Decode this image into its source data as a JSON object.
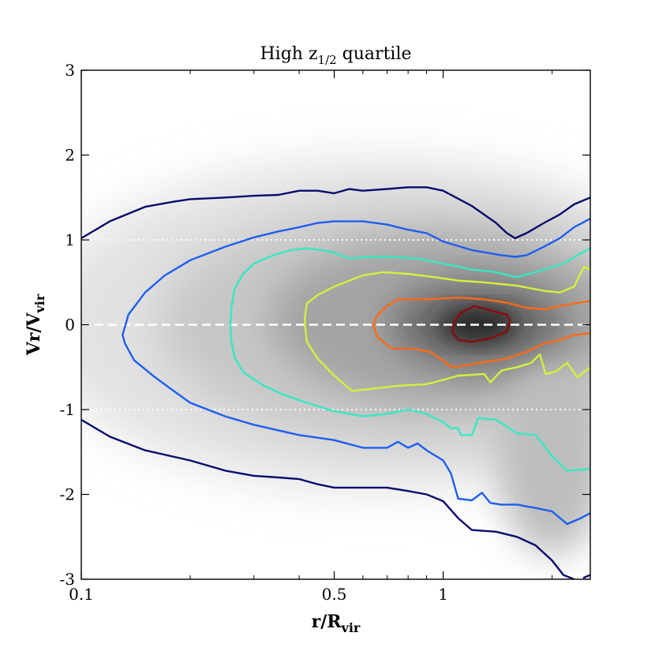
{
  "chart_data": {
    "type": "contour",
    "title": "High z",
    "title_subscript": "1/2",
    "title_suffix": " quartile",
    "xlabel": "r/R",
    "xlabel_subscript": "vir",
    "ylabel": "Vr/V",
    "ylabel_subscript": "vir",
    "xscale": "log",
    "xlim": [
      0.1,
      2.55
    ],
    "ylim": [
      -3,
      3
    ],
    "x_major_ticks": [
      {
        "value": 0.1,
        "label": "0.1"
      },
      {
        "value": 0.5,
        "label": "0.5"
      },
      {
        "value": 1,
        "label": "1"
      }
    ],
    "x_minor_ticks": [
      0.2,
      0.3,
      0.4,
      0.6,
      0.7,
      0.8,
      0.9,
      2
    ],
    "y_ticks": [
      {
        "value": 3,
        "label": "3"
      },
      {
        "value": 2,
        "label": "2"
      },
      {
        "value": 1,
        "label": "1"
      },
      {
        "value": 0,
        "label": "0"
      },
      {
        "value": -1,
        "label": "-1"
      },
      {
        "value": -2,
        "label": "-2"
      },
      {
        "value": -3,
        "label": "-3"
      }
    ],
    "reference_lines": [
      {
        "y": 0,
        "style": "dashed",
        "color": "#ffffff"
      },
      {
        "y": 1,
        "style": "dotted",
        "color": "#ffffff"
      },
      {
        "y": -1,
        "style": "dotted",
        "color": "#ffffff"
      }
    ],
    "background_colormap": "grey density, darker = higher",
    "density_peak": {
      "x": 1.25,
      "y": 0
    },
    "contours": [
      {
        "name": "level-1",
        "color": "#0b0b6e",
        "closed": false,
        "segments": [
          [
            [
              0.1,
              1.02
            ],
            [
              0.12,
              1.22
            ],
            [
              0.15,
              1.39
            ],
            [
              0.18,
              1.45
            ],
            [
              0.2,
              1.48
            ],
            [
              0.25,
              1.5
            ],
            [
              0.3,
              1.52
            ],
            [
              0.35,
              1.53
            ],
            [
              0.4,
              1.58
            ],
            [
              0.45,
              1.58
            ],
            [
              0.5,
              1.55
            ],
            [
              0.55,
              1.6
            ],
            [
              0.6,
              1.58
            ],
            [
              0.7,
              1.6
            ],
            [
              0.8,
              1.62
            ],
            [
              0.9,
              1.62
            ],
            [
              1,
              1.58
            ],
            [
              1.2,
              1.4
            ],
            [
              1.4,
              1.2
            ],
            [
              1.5,
              1.08
            ],
            [
              1.58,
              1.02
            ],
            [
              1.7,
              1.08
            ],
            [
              1.9,
              1.2
            ],
            [
              2.1,
              1.3
            ],
            [
              2.3,
              1.42
            ],
            [
              2.55,
              1.5
            ]
          ],
          [
            [
              0.1,
              -1.12
            ],
            [
              0.12,
              -1.32
            ],
            [
              0.15,
              -1.48
            ],
            [
              0.2,
              -1.6
            ],
            [
              0.25,
              -1.72
            ],
            [
              0.3,
              -1.78
            ],
            [
              0.35,
              -1.8
            ],
            [
              0.4,
              -1.82
            ],
            [
              0.45,
              -1.88
            ],
            [
              0.5,
              -1.92
            ],
            [
              0.6,
              -1.92
            ],
            [
              0.7,
              -1.92
            ],
            [
              0.8,
              -1.96
            ],
            [
              0.9,
              -2.0
            ],
            [
              1,
              -2.08
            ],
            [
              1.1,
              -2.28
            ],
            [
              1.2,
              -2.42
            ],
            [
              1.4,
              -2.44
            ],
            [
              1.6,
              -2.5
            ],
            [
              1.8,
              -2.6
            ],
            [
              2,
              -2.78
            ],
            [
              2.15,
              -2.95
            ],
            [
              2.3,
              -3.0
            ]
          ],
          [
            [
              2.45,
              -2.98
            ],
            [
              2.55,
              -2.95
            ]
          ]
        ]
      },
      {
        "name": "level-2",
        "color": "#1e5ef0",
        "closed": false,
        "segments": [
          [
            [
              2.55,
              1.25
            ],
            [
              2.3,
              1.15
            ],
            [
              2.1,
              1.02
            ],
            [
              1.9,
              0.92
            ],
            [
              1.7,
              0.82
            ],
            [
              1.58,
              0.8
            ],
            [
              1.45,
              0.82
            ],
            [
              1.2,
              0.88
            ],
            [
              1,
              0.98
            ],
            [
              0.9,
              1.08
            ],
            [
              0.8,
              1.12
            ],
            [
              0.7,
              1.18
            ],
            [
              0.6,
              1.22
            ],
            [
              0.5,
              1.22
            ],
            [
              0.45,
              1.2
            ],
            [
              0.4,
              1.15
            ],
            [
              0.35,
              1.1
            ],
            [
              0.3,
              1.03
            ],
            [
              0.25,
              0.92
            ],
            [
              0.2,
              0.76
            ],
            [
              0.17,
              0.58
            ],
            [
              0.15,
              0.38
            ],
            [
              0.135,
              0.12
            ],
            [
              0.13,
              -0.12
            ],
            [
              0.132,
              -0.22
            ],
            [
              0.14,
              -0.42
            ],
            [
              0.16,
              -0.62
            ],
            [
              0.18,
              -0.78
            ],
            [
              0.2,
              -0.92
            ],
            [
              0.25,
              -1.08
            ],
            [
              0.3,
              -1.18
            ],
            [
              0.4,
              -1.3
            ],
            [
              0.5,
              -1.36
            ],
            [
              0.6,
              -1.45
            ],
            [
              0.7,
              -1.45
            ],
            [
              0.75,
              -1.38
            ],
            [
              0.8,
              -1.45
            ],
            [
              0.85,
              -1.4
            ],
            [
              0.9,
              -1.48
            ],
            [
              1,
              -1.6
            ],
            [
              1.05,
              -1.75
            ],
            [
              1.1,
              -2.05
            ],
            [
              1.2,
              -2.07
            ],
            [
              1.28,
              -1.98
            ],
            [
              1.35,
              -2.1
            ],
            [
              1.45,
              -2.12
            ],
            [
              1.6,
              -2.12
            ],
            [
              1.8,
              -2.16
            ],
            [
              2,
              -2.2
            ],
            [
              2.2,
              -2.35
            ],
            [
              2.4,
              -2.28
            ],
            [
              2.55,
              -2.22
            ]
          ]
        ]
      },
      {
        "name": "level-3",
        "color": "#36e8c4",
        "closed": false,
        "segments": [
          [
            [
              2.55,
              0.9
            ],
            [
              2.35,
              0.82
            ],
            [
              2.15,
              0.72
            ],
            [
              1.9,
              0.65
            ],
            [
              1.6,
              0.56
            ],
            [
              1.4,
              0.62
            ],
            [
              1.2,
              0.65
            ],
            [
              1,
              0.72
            ],
            [
              0.85,
              0.78
            ],
            [
              0.72,
              0.8
            ],
            [
              0.62,
              0.8
            ],
            [
              0.55,
              0.78
            ],
            [
              0.52,
              0.82
            ],
            [
              0.5,
              0.85
            ],
            [
              0.46,
              0.88
            ],
            [
              0.42,
              0.9
            ],
            [
              0.38,
              0.88
            ],
            [
              0.34,
              0.82
            ],
            [
              0.3,
              0.72
            ],
            [
              0.28,
              0.6
            ],
            [
              0.265,
              0.42
            ],
            [
              0.26,
              0.2
            ],
            [
              0.258,
              0
            ],
            [
              0.26,
              -0.2
            ],
            [
              0.265,
              -0.38
            ],
            [
              0.28,
              -0.56
            ],
            [
              0.32,
              -0.72
            ],
            [
              0.36,
              -0.82
            ],
            [
              0.42,
              -0.92
            ],
            [
              0.5,
              -1.02
            ],
            [
              0.6,
              -1.08
            ],
            [
              0.7,
              -1.05
            ],
            [
              0.8,
              -1.0
            ],
            [
              0.9,
              -1.05
            ],
            [
              1,
              -1.15
            ],
            [
              1.05,
              -1.22
            ],
            [
              1.1,
              -1.22
            ],
            [
              1.12,
              -1.3
            ],
            [
              1.2,
              -1.3
            ],
            [
              1.25,
              -1.1
            ],
            [
              1.4,
              -1.12
            ],
            [
              1.6,
              -1.28
            ],
            [
              1.8,
              -1.3
            ],
            [
              2,
              -1.55
            ],
            [
              2.2,
              -1.72
            ],
            [
              2.55,
              -1.7
            ]
          ]
        ]
      },
      {
        "name": "level-4",
        "color": "#d4f03c",
        "closed": false,
        "segments": [
          [
            [
              2.55,
              0.65
            ],
            [
              2.45,
              0.68
            ],
            [
              2.38,
              0.58
            ],
            [
              2.3,
              0.45
            ],
            [
              2.1,
              0.38
            ],
            [
              1.9,
              0.4
            ],
            [
              1.6,
              0.46
            ],
            [
              1.3,
              0.5
            ],
            [
              1.1,
              0.52
            ],
            [
              0.95,
              0.56
            ],
            [
              0.8,
              0.6
            ],
            [
              0.68,
              0.62
            ],
            [
              0.6,
              0.58
            ],
            [
              0.55,
              0.52
            ],
            [
              0.5,
              0.45
            ],
            [
              0.45,
              0.35
            ],
            [
              0.42,
              0.25
            ],
            [
              0.415,
              0.1
            ],
            [
              0.415,
              0
            ],
            [
              0.42,
              -0.2
            ],
            [
              0.45,
              -0.4
            ],
            [
              0.5,
              -0.6
            ],
            [
              0.56,
              -0.78
            ],
            [
              0.65,
              -0.75
            ],
            [
              0.75,
              -0.72
            ],
            [
              0.9,
              -0.7
            ],
            [
              1,
              -0.65
            ],
            [
              1.1,
              -0.6
            ],
            [
              1.3,
              -0.58
            ],
            [
              1.35,
              -0.68
            ],
            [
              1.45,
              -0.54
            ],
            [
              1.6,
              -0.5
            ],
            [
              1.75,
              -0.45
            ],
            [
              1.85,
              -0.35
            ],
            [
              1.92,
              -0.58
            ],
            [
              2.05,
              -0.55
            ],
            [
              2.2,
              -0.45
            ],
            [
              2.35,
              -0.62
            ],
            [
              2.55,
              -0.5
            ]
          ]
        ]
      },
      {
        "name": "level-5",
        "color": "#ff6a16",
        "closed": false,
        "segments": [
          [
            [
              2.55,
              0.28
            ],
            [
              2.3,
              0.25
            ],
            [
              2.1,
              0.22
            ],
            [
              1.9,
              0.18
            ],
            [
              1.7,
              0.2
            ],
            [
              1.5,
              0.26
            ],
            [
              1.3,
              0.3
            ],
            [
              1.1,
              0.32
            ],
            [
              0.9,
              0.3
            ],
            [
              0.75,
              0.3
            ],
            [
              0.7,
              0.22
            ],
            [
              0.66,
              0.12
            ],
            [
              0.64,
              0
            ],
            [
              0.66,
              -0.15
            ],
            [
              0.72,
              -0.28
            ],
            [
              0.82,
              -0.28
            ],
            [
              0.92,
              -0.32
            ],
            [
              1.0,
              -0.42
            ],
            [
              1.05,
              -0.5
            ],
            [
              1.15,
              -0.48
            ],
            [
              1.3,
              -0.44
            ],
            [
              1.5,
              -0.4
            ],
            [
              1.7,
              -0.32
            ],
            [
              1.9,
              -0.22
            ],
            [
              2.1,
              -0.18
            ],
            [
              2.3,
              -0.12
            ],
            [
              2.55,
              -0.1
            ]
          ]
        ]
      },
      {
        "name": "level-6",
        "color": "#8b0a0a",
        "closed": true,
        "segments": [
          [
            [
              1.22,
              0.22
            ],
            [
              1.4,
              0.15
            ],
            [
              1.5,
              0.12
            ],
            [
              1.53,
              0.05
            ],
            [
              1.5,
              -0.08
            ],
            [
              1.35,
              -0.16
            ],
            [
              1.2,
              -0.2
            ],
            [
              1.1,
              -0.18
            ],
            [
              1.06,
              -0.08
            ],
            [
              1.08,
              0.05
            ],
            [
              1.12,
              0.14
            ]
          ]
        ]
      }
    ]
  }
}
